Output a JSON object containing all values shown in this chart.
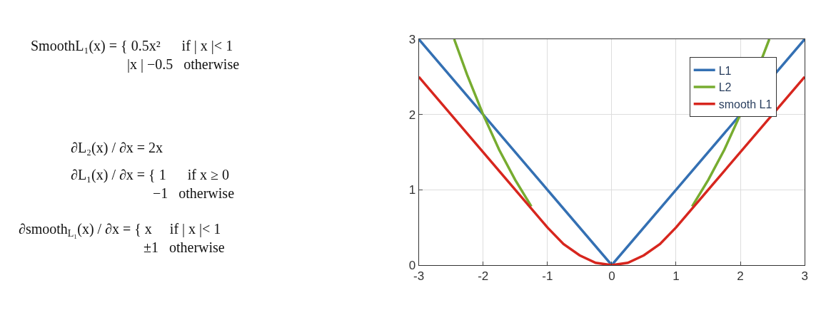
{
  "chart_data": {
    "type": "line",
    "series": [
      {
        "name": "L1",
        "color": "#3470b3",
        "x": [
          -3,
          0,
          3
        ],
        "values": [
          3,
          0,
          3
        ]
      },
      {
        "name": "L2",
        "color": "#77ac30",
        "x": [
          -2.45,
          -2.25,
          -2,
          -1.75,
          -1.5,
          -1.25,
          0,
          1.25,
          1.5,
          1.75,
          2,
          2.45
        ],
        "values": [
          3,
          2.53,
          2,
          1.53,
          1.13,
          0.78,
          null,
          0.78,
          1.13,
          1.53,
          2,
          3
        ]
      },
      {
        "name": "smooth L1",
        "color": "#d7261e",
        "x": [
          -3,
          -1,
          -0.75,
          -0.5,
          -0.25,
          0,
          0.25,
          0.5,
          0.75,
          1,
          3
        ],
        "values": [
          2.5,
          0.5,
          0.28,
          0.13,
          0.03,
          0,
          0.03,
          0.13,
          0.28,
          0.5,
          2.5
        ]
      }
    ],
    "xlim": [
      -3,
      3
    ],
    "xticks": [
      -3,
      -2,
      -1,
      0,
      1,
      2,
      3
    ],
    "ylim": [
      0,
      3
    ],
    "yticks": [
      0,
      1,
      2,
      3
    ],
    "grid": true,
    "legend": "top right",
    "line_style": "solid",
    "marker": "none",
    "annotations": [
      "Smooth$_{}$L₁(x) = { 0.5x²      if | x |< 1\n                           |x | −0.5   otherwise",
      "∂L₂(x) / ∂x = 2x",
      "∂L₁(x) / ∂x = { 1      if x ≥ 0\n                       −1   otherwise",
      "∂smooth$_{L₁}$(x) / ∂x = { x     if | x |< 1\n                                   ±1   otherwise"
    ]
  }
}
